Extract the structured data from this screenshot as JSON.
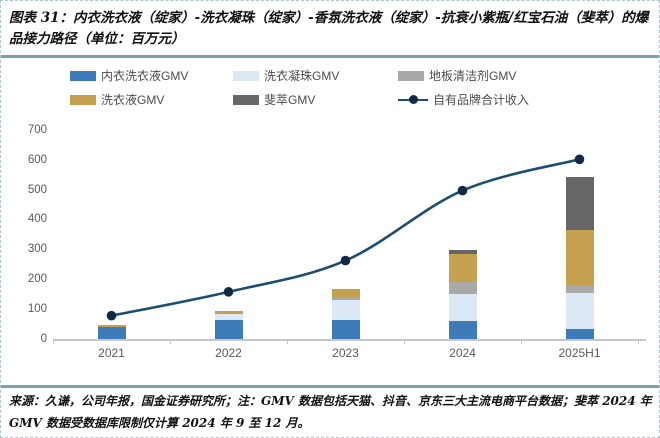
{
  "title": "图表 31：内衣洗衣液（绽家）-洗衣凝珠（绽家）-香氛洗衣液（绽家）-抗衰小紫瓶/红宝石油（斐萃）的爆品接力路径（单位：百万元）",
  "footer": {
    "text": "来源：久谦，公司年报，国金证券研究所；注：GMV 数据包括天猫、抖音、京东三大主流电商平台数据；斐萃 2024 年 GMV 数据受数据库限制仅计算 2024 年 9 至 12 月。"
  },
  "colors": {
    "separator": "#7aa3ac",
    "axis": "#c6c6c6",
    "axis_text": "#595959",
    "legend_text": "#4d4d4d"
  },
  "chart_data": {
    "type": "bar",
    "subtype": "stacked-bar-with-line",
    "categories": [
      "2021",
      "2022",
      "2023",
      "2024",
      "2025H1"
    ],
    "series": [
      {
        "name": "内衣洗衣液GMV",
        "type": "bar",
        "color": "#3e7cb9",
        "values": [
          42,
          65,
          65,
          62,
          36
        ]
      },
      {
        "name": "洗衣凝珠GMV",
        "type": "bar",
        "color": "#dce9f5",
        "values": [
          0,
          20,
          66,
          91,
          119
        ]
      },
      {
        "name": "地板清洁剂GMV",
        "type": "bar",
        "color": "#a9a9a9",
        "values": [
          0,
          0,
          13,
          40,
          24
        ]
      },
      {
        "name": "洗衣液GMV",
        "type": "bar",
        "color": "#c5a04e",
        "values": [
          8,
          10,
          27,
          93,
          190
        ]
      },
      {
        "name": "斐萃GMV",
        "type": "bar",
        "color": "#666666",
        "values": [
          0,
          0,
          0,
          14,
          175
        ]
      },
      {
        "name": "自有品牌合计收入",
        "type": "line",
        "color": "#1b4f72",
        "marker_color": "#102a43",
        "values": [
          80,
          160,
          265,
          500,
          605
        ]
      }
    ],
    "stacked_totals": [
      50,
      95,
      171,
      300,
      544
    ],
    "ylim": [
      0,
      700
    ],
    "y_ticks": [
      0,
      100,
      200,
      300,
      400,
      500,
      600,
      700
    ],
    "xlabel": "",
    "ylabel": "",
    "unit": "百万元",
    "legend_position": "top",
    "grid": false
  }
}
